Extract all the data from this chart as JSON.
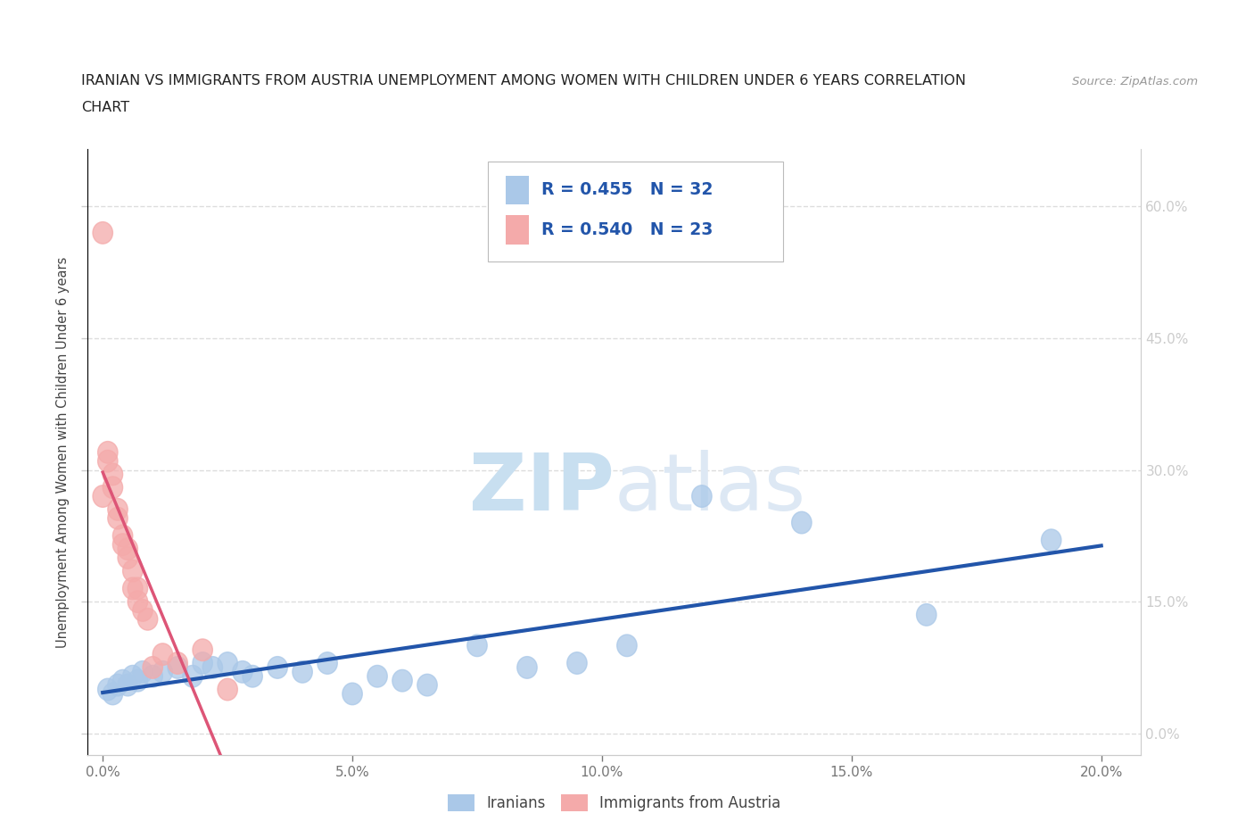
{
  "title_line1": "IRANIAN VS IMMIGRANTS FROM AUSTRIA UNEMPLOYMENT AMONG WOMEN WITH CHILDREN UNDER 6 YEARS CORRELATION",
  "title_line2": "CHART",
  "source": "Source: ZipAtlas.com",
  "xlabel_ticks": [
    "0.0%",
    "5.0%",
    "10.0%",
    "15.0%",
    "20.0%"
  ],
  "xlabel_vals": [
    0.0,
    0.05,
    0.1,
    0.15,
    0.2
  ],
  "ylabel": "Unemployment Among Women with Children Under 6 years",
  "ylabel_ticks": [
    "0.0%",
    "15.0%",
    "30.0%",
    "45.0%",
    "60.0%"
  ],
  "ylabel_vals": [
    0.0,
    0.15,
    0.3,
    0.45,
    0.6
  ],
  "blue_color": "#aac8e8",
  "pink_color": "#f4aaaa",
  "blue_line_color": "#2255aa",
  "pink_line_color": "#dd5577",
  "R_blue": 0.455,
  "N_blue": 32,
  "R_pink": 0.54,
  "N_pink": 23,
  "blue_scatter_x": [
    0.001,
    0.002,
    0.003,
    0.004,
    0.005,
    0.006,
    0.007,
    0.008,
    0.01,
    0.012,
    0.015,
    0.018,
    0.02,
    0.022,
    0.025,
    0.028,
    0.03,
    0.035,
    0.04,
    0.045,
    0.05,
    0.055,
    0.06,
    0.065,
    0.075,
    0.085,
    0.095,
    0.105,
    0.12,
    0.14,
    0.165,
    0.19
  ],
  "blue_scatter_y": [
    0.05,
    0.045,
    0.055,
    0.06,
    0.055,
    0.065,
    0.06,
    0.07,
    0.065,
    0.07,
    0.075,
    0.065,
    0.08,
    0.075,
    0.08,
    0.07,
    0.065,
    0.075,
    0.07,
    0.08,
    0.045,
    0.065,
    0.06,
    0.055,
    0.1,
    0.075,
    0.08,
    0.1,
    0.27,
    0.24,
    0.135,
    0.22
  ],
  "pink_scatter_x": [
    0.0,
    0.0,
    0.001,
    0.001,
    0.002,
    0.002,
    0.003,
    0.003,
    0.004,
    0.004,
    0.005,
    0.005,
    0.006,
    0.006,
    0.007,
    0.007,
    0.008,
    0.009,
    0.01,
    0.012,
    0.015,
    0.02,
    0.025
  ],
  "pink_scatter_y": [
    0.57,
    0.27,
    0.32,
    0.31,
    0.295,
    0.28,
    0.245,
    0.255,
    0.225,
    0.215,
    0.21,
    0.2,
    0.185,
    0.165,
    0.165,
    0.15,
    0.14,
    0.13,
    0.075,
    0.09,
    0.08,
    0.095,
    0.05
  ],
  "watermark_zip": "ZIP",
  "watermark_atlas": "atlas",
  "background_color": "#ffffff",
  "grid_color": "#dddddd",
  "tick_label_color": "#4477cc",
  "axes_color": "#cccccc"
}
